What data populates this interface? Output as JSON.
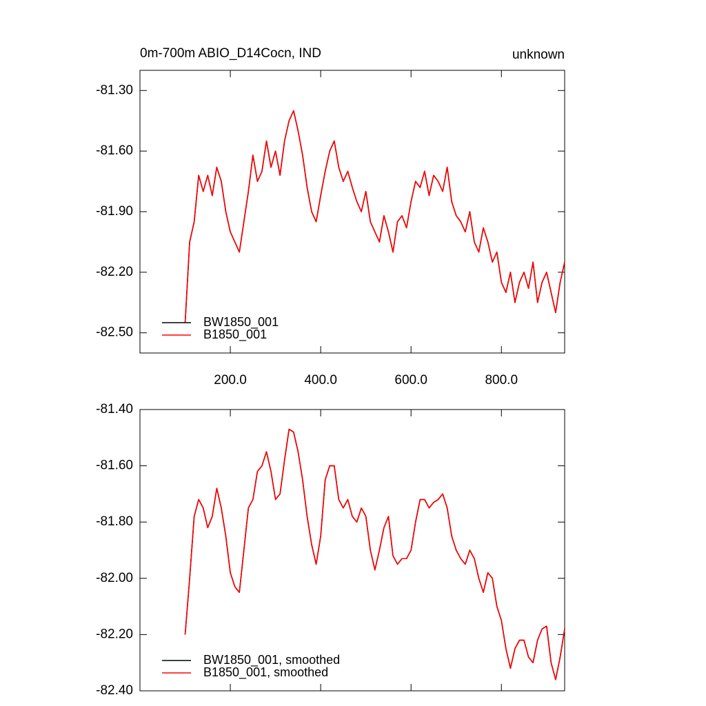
{
  "chart_data": [
    {
      "type": "line",
      "title": "0m-700m ABIO_D14Cocn, IND",
      "subtitle": "unknown",
      "x": [
        100,
        110,
        120,
        130,
        140,
        150,
        160,
        170,
        180,
        190,
        200,
        210,
        220,
        230,
        240,
        250,
        260,
        270,
        280,
        290,
        300,
        310,
        320,
        330,
        340,
        350,
        360,
        370,
        380,
        390,
        400,
        410,
        420,
        430,
        440,
        450,
        460,
        470,
        480,
        490,
        500,
        510,
        520,
        530,
        540,
        550,
        560,
        570,
        580,
        590,
        600,
        610,
        620,
        630,
        640,
        650,
        660,
        670,
        680,
        690,
        700,
        710,
        720,
        730,
        740,
        750,
        760,
        770,
        780,
        790,
        800,
        810,
        820,
        830,
        840,
        850,
        860,
        870,
        880,
        890,
        900,
        910,
        920,
        930,
        940
      ],
      "series": [
        {
          "name": "BW1850_001",
          "color": "#000000",
          "values": [
            -82.45,
            -82.05,
            -81.95,
            -81.72,
            -81.8,
            -81.72,
            -81.82,
            -81.68,
            -81.75,
            -81.9,
            -82.0,
            -82.05,
            -82.1,
            -81.95,
            -81.8,
            -81.62,
            -81.75,
            -81.7,
            -81.55,
            -81.68,
            -81.6,
            -81.72,
            -81.55,
            -81.45,
            -81.4,
            -81.5,
            -81.62,
            -81.78,
            -81.9,
            -81.95,
            -81.82,
            -81.7,
            -81.6,
            -81.55,
            -81.68,
            -81.75,
            -81.7,
            -81.78,
            -81.85,
            -81.9,
            -81.8,
            -81.95,
            -82.0,
            -82.05,
            -81.92,
            -82.0,
            -82.1,
            -81.95,
            -81.92,
            -81.98,
            -81.85,
            -81.75,
            -81.78,
            -81.7,
            -81.82,
            -81.72,
            -81.75,
            -81.8,
            -81.68,
            -81.85,
            -81.92,
            -81.95,
            -82.0,
            -81.9,
            -82.05,
            -82.1,
            -81.98,
            -82.05,
            -82.15,
            -82.1,
            -82.25,
            -82.3,
            -82.2,
            -82.35,
            -82.25,
            -82.2,
            -82.28,
            -82.15,
            -82.35,
            -82.25,
            -82.2,
            -82.3,
            -82.4,
            -82.25,
            -82.15
          ]
        },
        {
          "name": "B1850_001",
          "color": "#ff0000",
          "values": [
            -82.45,
            -82.05,
            -81.95,
            -81.72,
            -81.8,
            -81.72,
            -81.82,
            -81.68,
            -81.75,
            -81.9,
            -82.0,
            -82.05,
            -82.1,
            -81.95,
            -81.8,
            -81.62,
            -81.75,
            -81.7,
            -81.55,
            -81.68,
            -81.6,
            -81.72,
            -81.55,
            -81.45,
            -81.4,
            -81.5,
            -81.62,
            -81.78,
            -81.9,
            -81.95,
            -81.82,
            -81.7,
            -81.6,
            -81.55,
            -81.68,
            -81.75,
            -81.7,
            -81.78,
            -81.85,
            -81.9,
            -81.8,
            -81.95,
            -82.0,
            -82.05,
            -81.92,
            -82.0,
            -82.1,
            -81.95,
            -81.92,
            -81.98,
            -81.85,
            -81.75,
            -81.78,
            -81.7,
            -81.82,
            -81.72,
            -81.75,
            -81.8,
            -81.68,
            -81.85,
            -81.92,
            -81.95,
            -82.0,
            -81.9,
            -82.05,
            -82.1,
            -81.98,
            -82.05,
            -82.15,
            -82.1,
            -82.25,
            -82.3,
            -82.2,
            -82.35,
            -82.25,
            -82.2,
            -82.28,
            -82.15,
            -82.35,
            -82.25,
            -82.2,
            -82.3,
            -82.4,
            -82.25,
            -82.15
          ]
        }
      ],
      "xlim": [
        0,
        940
      ],
      "xticks": [
        {
          "value": 200,
          "label": "200.0"
        },
        {
          "value": 400,
          "label": "400.0"
        },
        {
          "value": 600,
          "label": "600.0"
        },
        {
          "value": 800,
          "label": "800.0"
        }
      ],
      "ylim": [
        -82.6,
        -81.2
      ],
      "yticks": [
        {
          "value": -81.3,
          "label": "-81.30"
        },
        {
          "value": -81.6,
          "label": "-81.60"
        },
        {
          "value": -81.9,
          "label": "-81.90"
        },
        {
          "value": -82.2,
          "label": "-82.20"
        },
        {
          "value": -82.5,
          "label": "-82.50"
        }
      ],
      "legend": "lower left",
      "grid": false,
      "xtick_labels": true
    },
    {
      "type": "line",
      "x": [
        100,
        110,
        120,
        130,
        140,
        150,
        160,
        170,
        180,
        190,
        200,
        210,
        220,
        230,
        240,
        250,
        260,
        270,
        280,
        290,
        300,
        310,
        320,
        330,
        340,
        350,
        360,
        370,
        380,
        390,
        400,
        410,
        420,
        430,
        440,
        450,
        460,
        470,
        480,
        490,
        500,
        510,
        520,
        530,
        540,
        550,
        560,
        570,
        580,
        590,
        600,
        610,
        620,
        630,
        640,
        650,
        660,
        670,
        680,
        690,
        700,
        710,
        720,
        730,
        740,
        750,
        760,
        770,
        780,
        790,
        800,
        810,
        820,
        830,
        840,
        850,
        860,
        870,
        880,
        890,
        900,
        910,
        920,
        930,
        940
      ],
      "series": [
        {
          "name": "BW1850_001, smoothed",
          "color": "#000000",
          "values": [
            -82.2,
            -82.0,
            -81.78,
            -81.72,
            -81.75,
            -81.82,
            -81.78,
            -81.68,
            -81.75,
            -81.85,
            -81.98,
            -82.03,
            -82.05,
            -81.9,
            -81.75,
            -81.72,
            -81.62,
            -81.6,
            -81.55,
            -81.62,
            -81.72,
            -81.7,
            -81.58,
            -81.47,
            -81.48,
            -81.55,
            -81.65,
            -81.78,
            -81.88,
            -81.95,
            -81.85,
            -81.65,
            -81.6,
            -81.6,
            -81.72,
            -81.75,
            -81.72,
            -81.78,
            -81.8,
            -81.75,
            -81.78,
            -81.9,
            -81.97,
            -81.9,
            -81.82,
            -81.78,
            -81.92,
            -81.95,
            -81.93,
            -81.93,
            -81.9,
            -81.8,
            -81.72,
            -81.72,
            -81.75,
            -81.73,
            -81.72,
            -81.7,
            -81.75,
            -81.85,
            -81.9,
            -81.93,
            -81.95,
            -81.9,
            -81.93,
            -82.0,
            -82.05,
            -81.98,
            -82.0,
            -82.1,
            -82.15,
            -82.25,
            -82.32,
            -82.25,
            -82.22,
            -82.22,
            -82.28,
            -82.3,
            -82.22,
            -82.18,
            -82.17,
            -82.3,
            -82.36,
            -82.28,
            -82.18
          ]
        },
        {
          "name": "B1850_001, smoothed",
          "color": "#ff0000",
          "values": [
            -82.2,
            -82.0,
            -81.78,
            -81.72,
            -81.75,
            -81.82,
            -81.78,
            -81.68,
            -81.75,
            -81.85,
            -81.98,
            -82.03,
            -82.05,
            -81.9,
            -81.75,
            -81.72,
            -81.62,
            -81.6,
            -81.55,
            -81.62,
            -81.72,
            -81.7,
            -81.58,
            -81.47,
            -81.48,
            -81.55,
            -81.65,
            -81.78,
            -81.88,
            -81.95,
            -81.85,
            -81.65,
            -81.6,
            -81.6,
            -81.72,
            -81.75,
            -81.72,
            -81.78,
            -81.8,
            -81.75,
            -81.78,
            -81.9,
            -81.97,
            -81.9,
            -81.82,
            -81.78,
            -81.92,
            -81.95,
            -81.93,
            -81.93,
            -81.9,
            -81.8,
            -81.72,
            -81.72,
            -81.75,
            -81.73,
            -81.72,
            -81.7,
            -81.75,
            -81.85,
            -81.9,
            -81.93,
            -81.95,
            -81.9,
            -81.93,
            -82.0,
            -82.05,
            -81.98,
            -82.0,
            -82.1,
            -82.15,
            -82.25,
            -82.32,
            -82.25,
            -82.22,
            -82.22,
            -82.28,
            -82.3,
            -82.22,
            -82.18,
            -82.17,
            -82.3,
            -82.36,
            -82.28,
            -82.18
          ]
        }
      ],
      "xlim": [
        0,
        940
      ],
      "xticks": [
        200,
        400,
        600,
        800
      ],
      "ylim": [
        -82.4,
        -81.4
      ],
      "yticks": [
        {
          "value": -81.4,
          "label": "-81.40"
        },
        {
          "value": -81.6,
          "label": "-81.60"
        },
        {
          "value": -81.8,
          "label": "-81.80"
        },
        {
          "value": -82.0,
          "label": "-82.00"
        },
        {
          "value": -82.2,
          "label": "-82.20"
        },
        {
          "value": -82.4,
          "label": "-82.40"
        }
      ],
      "legend": "lower left",
      "grid": false,
      "xtick_labels": false
    }
  ]
}
